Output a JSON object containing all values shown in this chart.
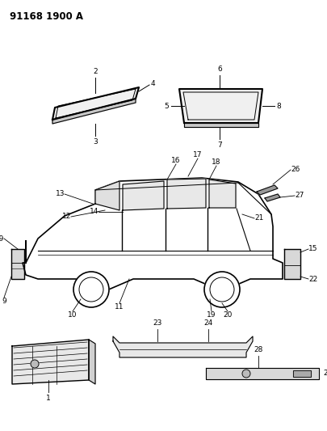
{
  "bg_color": "#ffffff",
  "line_color": "#000000",
  "title": "91168 1900 A",
  "fig_w": 4.06,
  "fig_h": 5.33,
  "dpi": 100
}
